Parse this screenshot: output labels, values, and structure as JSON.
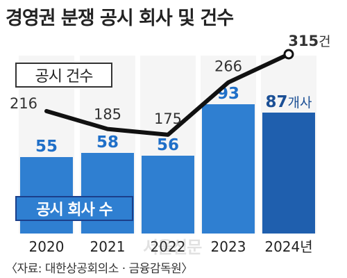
{
  "title": "경영권 분쟁 공시 회사 및 건수",
  "source": "〈자료: 대한상공회의소 · 금융감독원〉",
  "watermark": "서울신문",
  "legend": {
    "line_label": "공시 건수",
    "bar_label": "공시 회사 수"
  },
  "colors": {
    "bar": "#2f7fd1",
    "bar_last": "#1f5fae",
    "line": "#111111",
    "value_text": "#1f6fc8",
    "value_text_last": "#1b4f95"
  },
  "chart_data": {
    "type": "bar",
    "categories": [
      "2020",
      "2021",
      "2022",
      "2023",
      "2024"
    ],
    "category_suffix_last": "년",
    "series": [
      {
        "name": "공시 회사 수",
        "type": "bar",
        "values": [
          55,
          58,
          56,
          93,
          87
        ],
        "last_label_suffix": "개사"
      },
      {
        "name": "공시 건수",
        "type": "line",
        "values": [
          216,
          185,
          175,
          266,
          315
        ],
        "last_label_suffix": "건"
      }
    ],
    "title": "경영권 분쟁 공시 회사 및 건수",
    "xlabel": "",
    "ylabel": "",
    "grid": false
  }
}
